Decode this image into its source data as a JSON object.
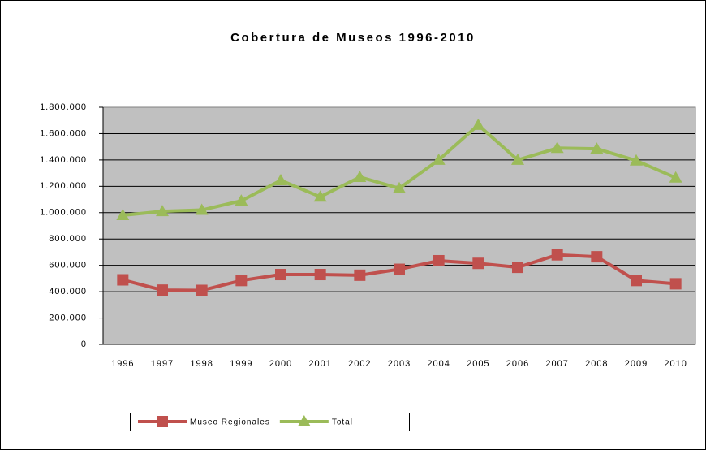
{
  "chart_data": {
    "type": "line",
    "title": "Cobertura de Museos 1996-2010",
    "categories": [
      "1996",
      "1997",
      "1998",
      "1999",
      "2000",
      "2001",
      "2002",
      "2003",
      "2004",
      "2005",
      "2006",
      "2007",
      "2008",
      "2009",
      "2010"
    ],
    "series": [
      {
        "name": "Museo Regionales",
        "color": "#c0504d",
        "marker": "square",
        "values": [
          490000,
          412000,
          410000,
          485000,
          530000,
          530000,
          525000,
          570000,
          635000,
          615000,
          585000,
          680000,
          665000,
          485000,
          460000
        ]
      },
      {
        "name": "Total",
        "color": "#9bbb59",
        "marker": "triangle",
        "values": [
          980000,
          1010000,
          1020000,
          1090000,
          1245000,
          1120000,
          1270000,
          1185000,
          1400000,
          1665000,
          1400000,
          1490000,
          1485000,
          1395000,
          1265000
        ]
      }
    ],
    "ylim": [
      0,
      1800000
    ],
    "yticks": [
      0,
      {
        "value": 200000,
        "label": "200.000"
      },
      {
        "value": 400000,
        "label": "400.000"
      },
      {
        "value": 600000,
        "label": "600.000"
      },
      {
        "value": 800000,
        "label": "800.000"
      },
      {
        "value": 1000000,
        "label": "1.000.000"
      },
      {
        "value": 1200000,
        "label": "1.200.000"
      },
      {
        "value": 1400000,
        "label": "1.400.000"
      },
      {
        "value": 1600000,
        "label": "1.600.000"
      },
      {
        "value": 1800000,
        "label": "1.800.000"
      }
    ],
    "grid": true,
    "legend": "bottom",
    "plot_background": "#c0c0c0"
  }
}
